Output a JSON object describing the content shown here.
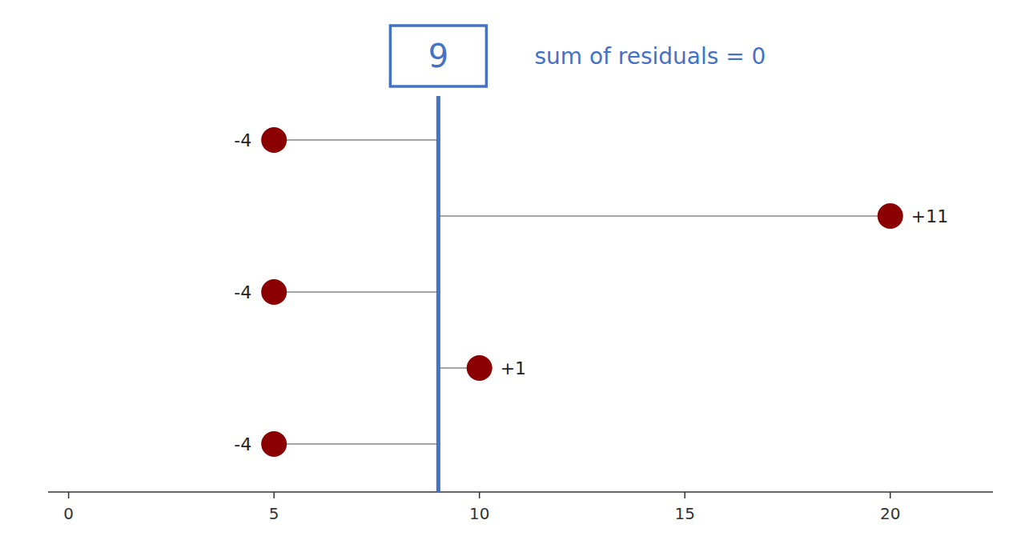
{
  "chart_data": {
    "type": "dot",
    "series": [
      {
        "type": "dot",
        "color": "#8B0000",
        "values": [
          5,
          20,
          5,
          10,
          5
        ],
        "residuals": [
          -4,
          {
            "value": 11,
            "label": "+11"
          },
          -4,
          {
            "value": 1,
            "label": "+1"
          },
          -4
        ]
      },
      {
        "type": "mean",
        "color": "#4472C4",
        "values": [
          9
        ]
      }
    ],
    "annotation": "sum of residuals = 0",
    "xlim": [
      -0.5,
      22.5
    ],
    "xticks": [
      0,
      5,
      10,
      15,
      20
    ],
    "grid": false,
    "tick_labels": "x"
  }
}
